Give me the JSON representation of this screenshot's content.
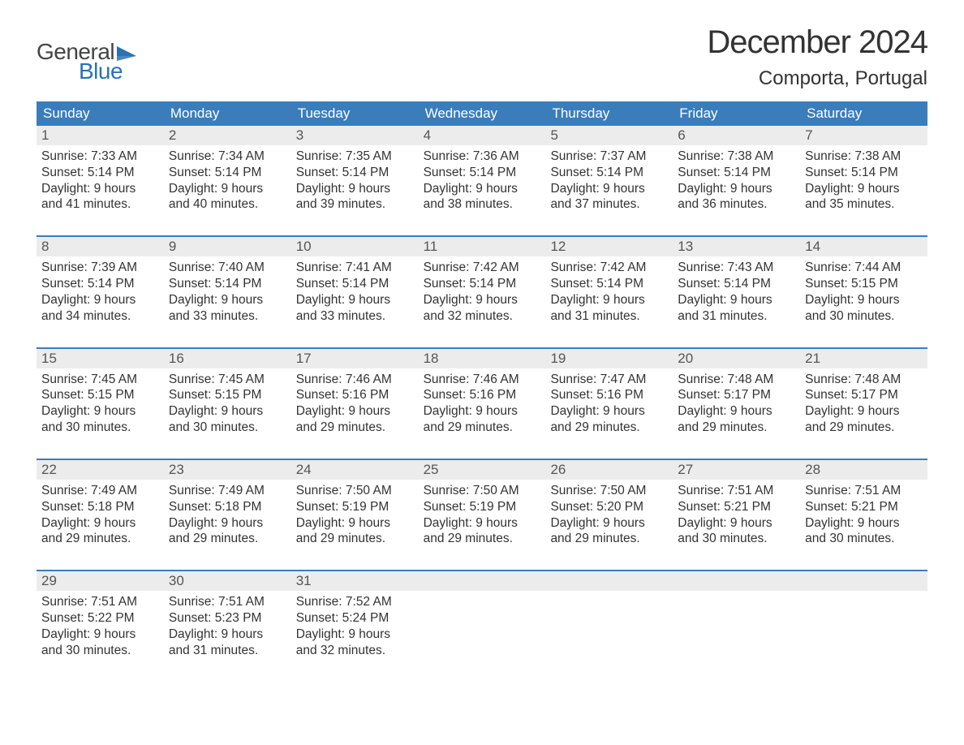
{
  "logo": {
    "general": "General",
    "blue": "Blue"
  },
  "title": "December 2024",
  "location": "Comporta, Portugal",
  "colors": {
    "header_bg": "#3b7dbb",
    "date_row_bg": "#ececec",
    "week_border": "#3b7dbb",
    "logo_blue": "#2a72b5",
    "text": "#333333"
  },
  "day_names": [
    "Sunday",
    "Monday",
    "Tuesday",
    "Wednesday",
    "Thursday",
    "Friday",
    "Saturday"
  ],
  "weeks": [
    [
      {
        "date": "1",
        "sunrise": "7:33 AM",
        "sunset": "5:14 PM",
        "daylight": "9 hours and 41 minutes."
      },
      {
        "date": "2",
        "sunrise": "7:34 AM",
        "sunset": "5:14 PM",
        "daylight": "9 hours and 40 minutes."
      },
      {
        "date": "3",
        "sunrise": "7:35 AM",
        "sunset": "5:14 PM",
        "daylight": "9 hours and 39 minutes."
      },
      {
        "date": "4",
        "sunrise": "7:36 AM",
        "sunset": "5:14 PM",
        "daylight": "9 hours and 38 minutes."
      },
      {
        "date": "5",
        "sunrise": "7:37 AM",
        "sunset": "5:14 PM",
        "daylight": "9 hours and 37 minutes."
      },
      {
        "date": "6",
        "sunrise": "7:38 AM",
        "sunset": "5:14 PM",
        "daylight": "9 hours and 36 minutes."
      },
      {
        "date": "7",
        "sunrise": "7:38 AM",
        "sunset": "5:14 PM",
        "daylight": "9 hours and 35 minutes."
      }
    ],
    [
      {
        "date": "8",
        "sunrise": "7:39 AM",
        "sunset": "5:14 PM",
        "daylight": "9 hours and 34 minutes."
      },
      {
        "date": "9",
        "sunrise": "7:40 AM",
        "sunset": "5:14 PM",
        "daylight": "9 hours and 33 minutes."
      },
      {
        "date": "10",
        "sunrise": "7:41 AM",
        "sunset": "5:14 PM",
        "daylight": "9 hours and 33 minutes."
      },
      {
        "date": "11",
        "sunrise": "7:42 AM",
        "sunset": "5:14 PM",
        "daylight": "9 hours and 32 minutes."
      },
      {
        "date": "12",
        "sunrise": "7:42 AM",
        "sunset": "5:14 PM",
        "daylight": "9 hours and 31 minutes."
      },
      {
        "date": "13",
        "sunrise": "7:43 AM",
        "sunset": "5:14 PM",
        "daylight": "9 hours and 31 minutes."
      },
      {
        "date": "14",
        "sunrise": "7:44 AM",
        "sunset": "5:15 PM",
        "daylight": "9 hours and 30 minutes."
      }
    ],
    [
      {
        "date": "15",
        "sunrise": "7:45 AM",
        "sunset": "5:15 PM",
        "daylight": "9 hours and 30 minutes."
      },
      {
        "date": "16",
        "sunrise": "7:45 AM",
        "sunset": "5:15 PM",
        "daylight": "9 hours and 30 minutes."
      },
      {
        "date": "17",
        "sunrise": "7:46 AM",
        "sunset": "5:16 PM",
        "daylight": "9 hours and 29 minutes."
      },
      {
        "date": "18",
        "sunrise": "7:46 AM",
        "sunset": "5:16 PM",
        "daylight": "9 hours and 29 minutes."
      },
      {
        "date": "19",
        "sunrise": "7:47 AM",
        "sunset": "5:16 PM",
        "daylight": "9 hours and 29 minutes."
      },
      {
        "date": "20",
        "sunrise": "7:48 AM",
        "sunset": "5:17 PM",
        "daylight": "9 hours and 29 minutes."
      },
      {
        "date": "21",
        "sunrise": "7:48 AM",
        "sunset": "5:17 PM",
        "daylight": "9 hours and 29 minutes."
      }
    ],
    [
      {
        "date": "22",
        "sunrise": "7:49 AM",
        "sunset": "5:18 PM",
        "daylight": "9 hours and 29 minutes."
      },
      {
        "date": "23",
        "sunrise": "7:49 AM",
        "sunset": "5:18 PM",
        "daylight": "9 hours and 29 minutes."
      },
      {
        "date": "24",
        "sunrise": "7:50 AM",
        "sunset": "5:19 PM",
        "daylight": "9 hours and 29 minutes."
      },
      {
        "date": "25",
        "sunrise": "7:50 AM",
        "sunset": "5:19 PM",
        "daylight": "9 hours and 29 minutes."
      },
      {
        "date": "26",
        "sunrise": "7:50 AM",
        "sunset": "5:20 PM",
        "daylight": "9 hours and 29 minutes."
      },
      {
        "date": "27",
        "sunrise": "7:51 AM",
        "sunset": "5:21 PM",
        "daylight": "9 hours and 30 minutes."
      },
      {
        "date": "28",
        "sunrise": "7:51 AM",
        "sunset": "5:21 PM",
        "daylight": "9 hours and 30 minutes."
      }
    ],
    [
      {
        "date": "29",
        "sunrise": "7:51 AM",
        "sunset": "5:22 PM",
        "daylight": "9 hours and 30 minutes."
      },
      {
        "date": "30",
        "sunrise": "7:51 AM",
        "sunset": "5:23 PM",
        "daylight": "9 hours and 31 minutes."
      },
      {
        "date": "31",
        "sunrise": "7:52 AM",
        "sunset": "5:24 PM",
        "daylight": "9 hours and 32 minutes."
      },
      null,
      null,
      null,
      null
    ]
  ],
  "labels": {
    "sunrise": "Sunrise: ",
    "sunset": "Sunset: ",
    "daylight": "Daylight: "
  }
}
